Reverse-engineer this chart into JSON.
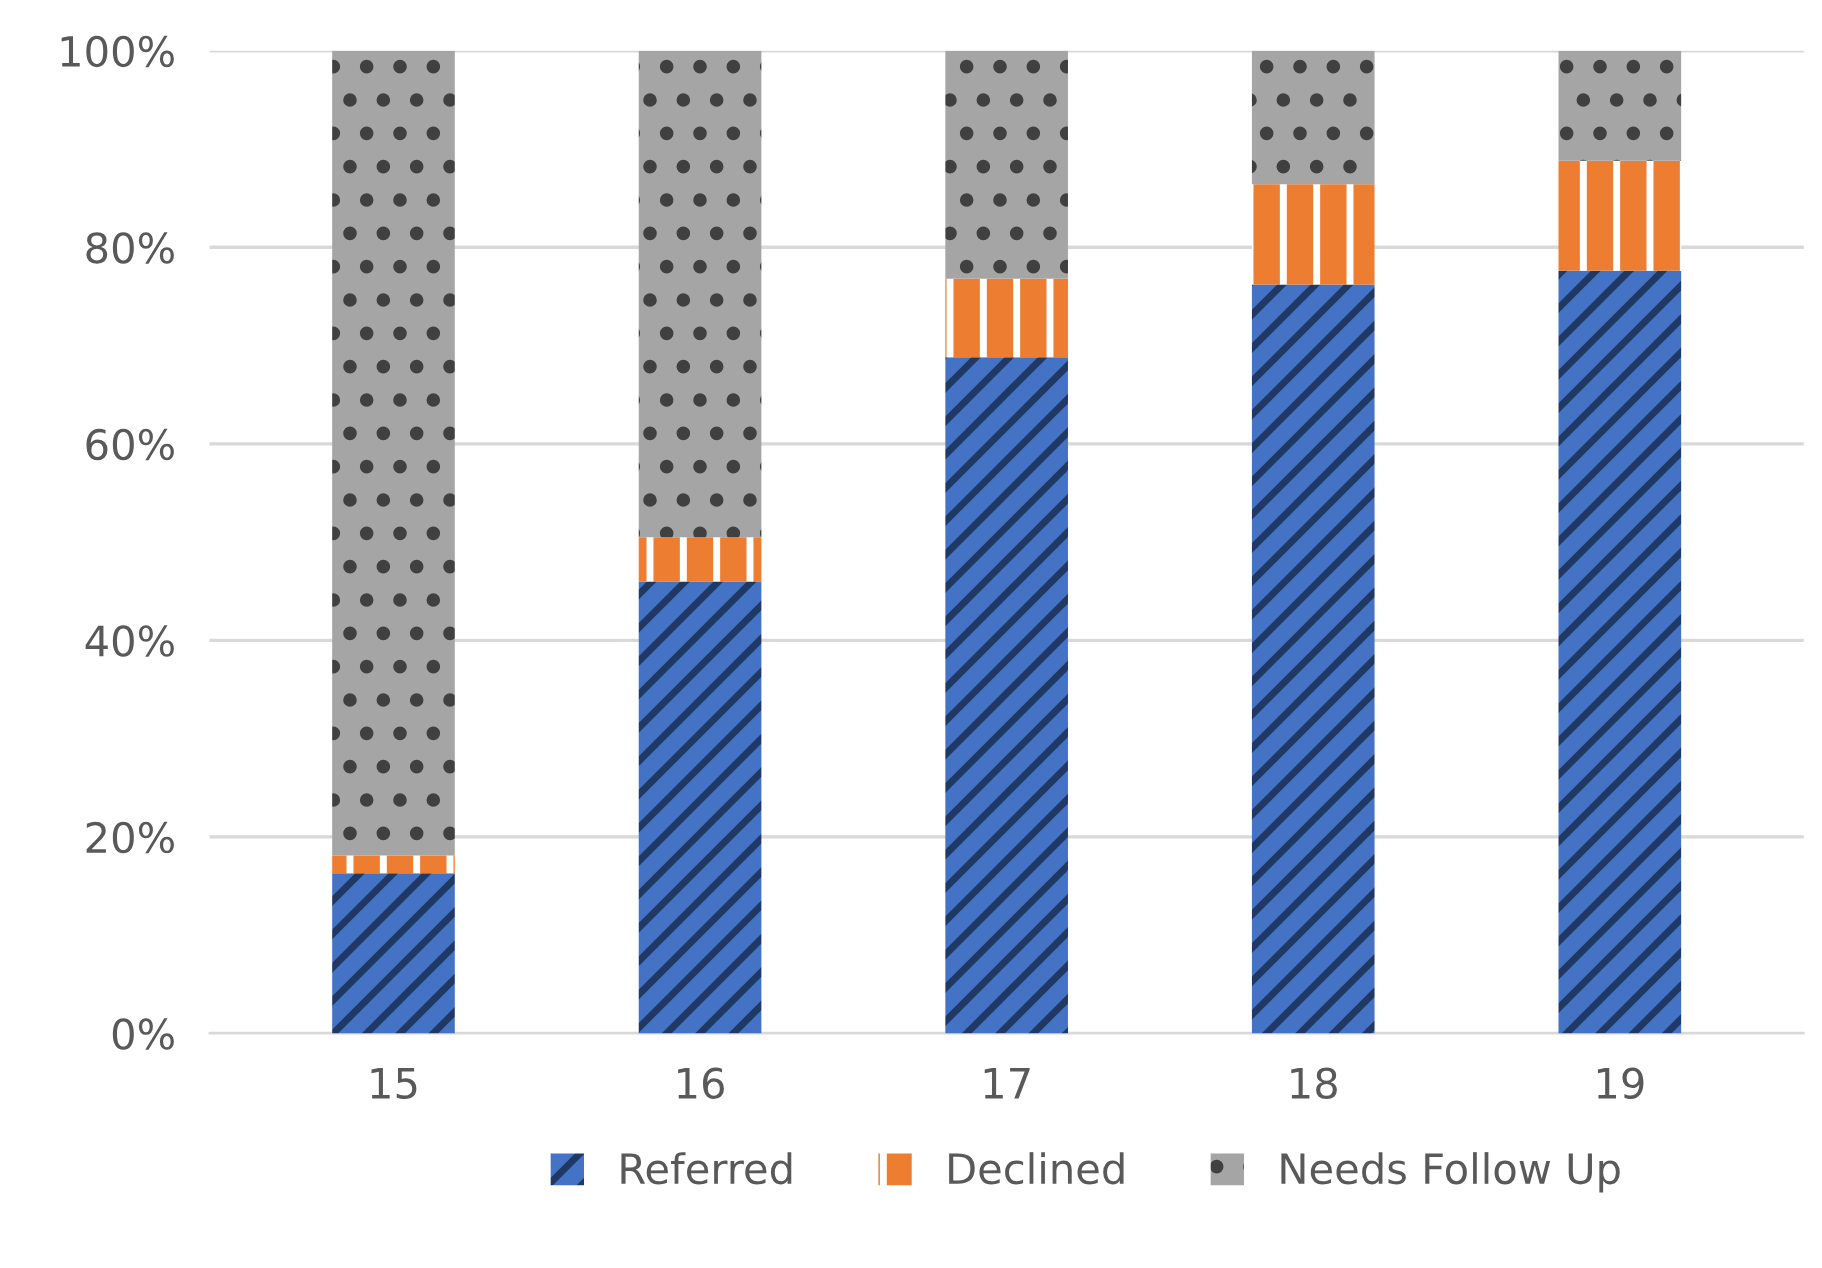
{
  "chart_data": {
    "type": "bar",
    "stacked": true,
    "categories": [
      "15",
      "16",
      "17",
      "18",
      "19"
    ],
    "series": [
      {
        "name": "Referred",
        "color": "#4472c4",
        "values": [
          16.3,
          46.0,
          68.8,
          76.2,
          77.6
        ]
      },
      {
        "name": "Declined",
        "color": "#ed7d31",
        "values": [
          1.8,
          4.5,
          8.0,
          10.2,
          11.2
        ]
      },
      {
        "name": "Needs Follow Up",
        "color": "#a5a5a5",
        "values": [
          81.9,
          49.5,
          23.2,
          13.6,
          11.2
        ]
      }
    ],
    "ylim": [
      0,
      100
    ],
    "yticks": [
      {
        "value": 0,
        "label": "0%"
      },
      {
        "value": 20,
        "label": "20%"
      },
      {
        "value": 40,
        "label": "40%"
      },
      {
        "value": 60,
        "label": "60%"
      },
      {
        "value": 80,
        "label": "80%"
      },
      {
        "value": 100,
        "label": "100%"
      }
    ],
    "grid": "y",
    "legend": "bottom"
  }
}
